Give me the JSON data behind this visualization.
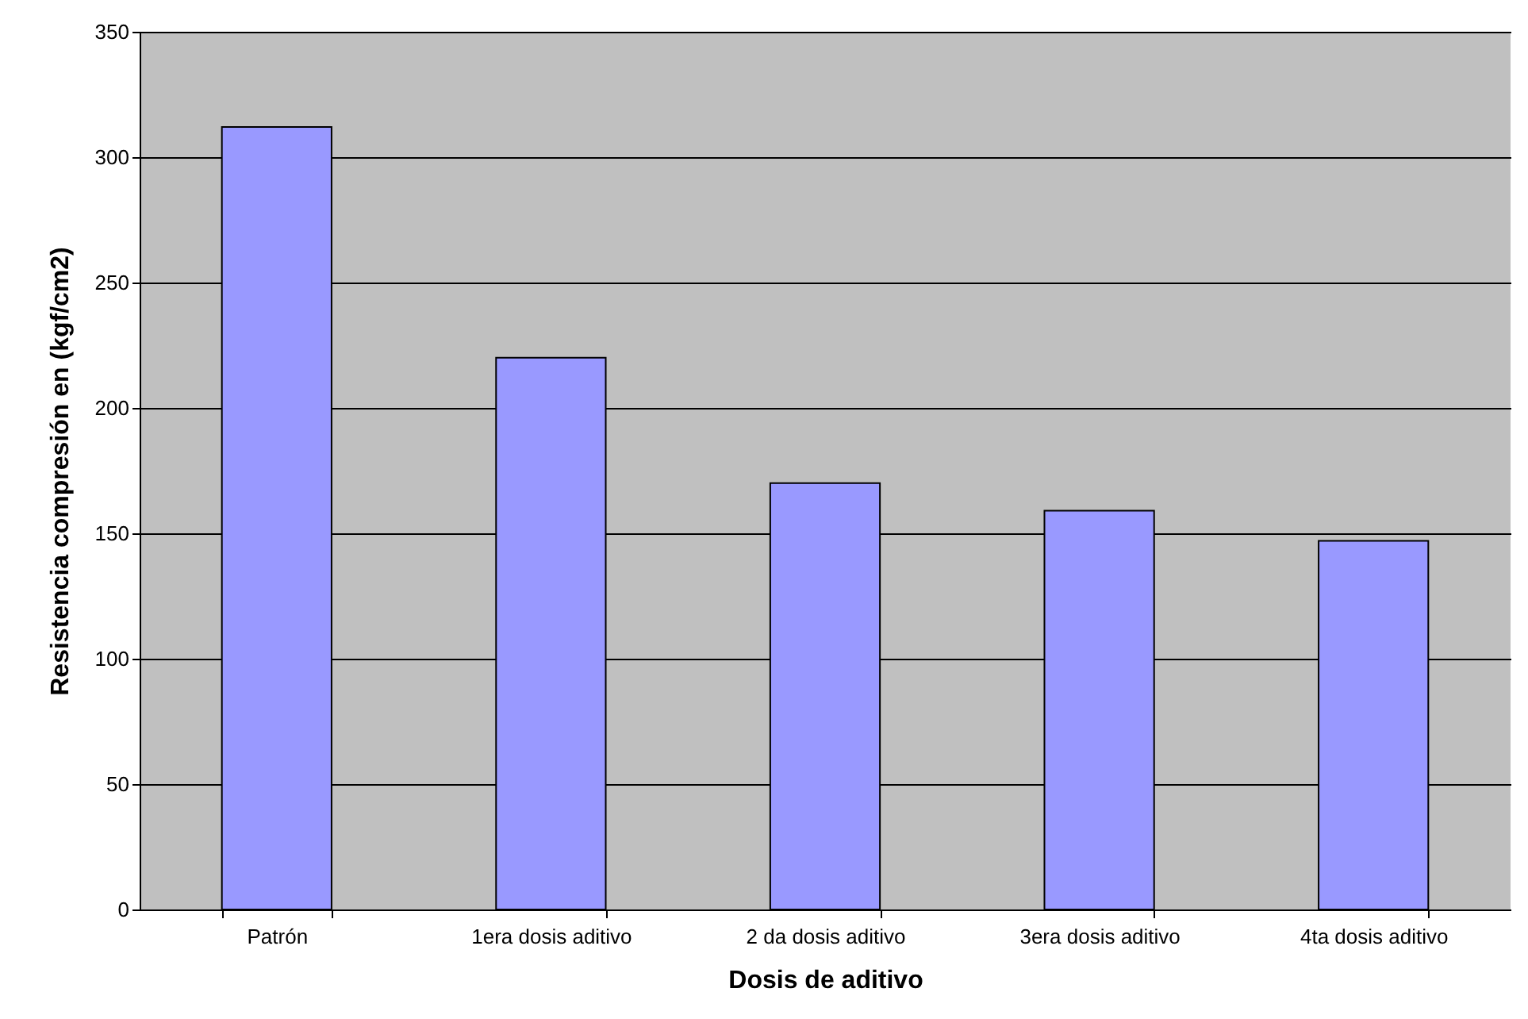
{
  "chart_data": {
    "type": "bar",
    "xlabel": "Dosis de aditivo",
    "ylabel": "Resistencia compresión en (kgf/cm2)",
    "categories": [
      "Patrón",
      "1era dosis aditivo",
      "2 da dosis aditivo",
      "3era dosis aditivo",
      "4ta dosis aditivo"
    ],
    "values": [
      312,
      220,
      170,
      159,
      147
    ],
    "color": "#9999ff",
    "ylim": [
      0,
      350
    ],
    "yticks": [
      0,
      50,
      100,
      150,
      200,
      250,
      300,
      350
    ],
    "grid": "y"
  }
}
